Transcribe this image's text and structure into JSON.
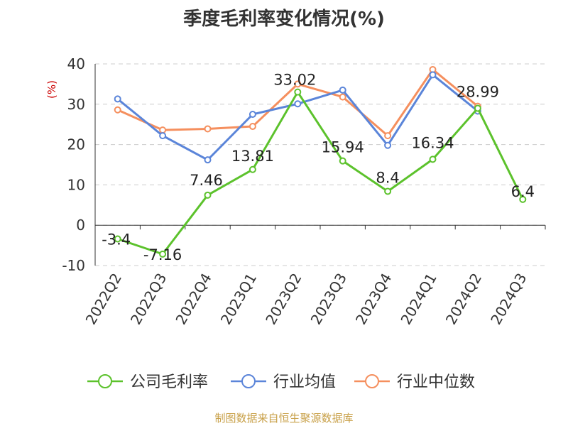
{
  "chart_data": {
    "type": "line",
    "title": "季度毛利率变化情况(%)",
    "ylabel": "(%)",
    "xlabel": "",
    "categories": [
      "2022Q2",
      "2022Q3",
      "2022Q4",
      "2023Q1",
      "2023Q2",
      "2023Q3",
      "2023Q4",
      "2024Q1",
      "2024Q2",
      "2024Q3"
    ],
    "ylim": [
      -10,
      40
    ],
    "yticks": [
      -10,
      0,
      10,
      20,
      30,
      40
    ],
    "grid": true,
    "legend_position": "bottom",
    "series": [
      {
        "name": "公司毛利率",
        "color": "#5cc22c",
        "values": [
          -3.4,
          -7.16,
          7.46,
          13.81,
          33.02,
          15.94,
          8.4,
          16.34,
          28.99,
          6.4
        ],
        "labels": [
          "-3.4",
          "-7.16",
          "7.46",
          "13.81",
          "33.02",
          "15.94",
          "8.4",
          "16.34",
          "28.99",
          "6.4"
        ]
      },
      {
        "name": "行业均值",
        "color": "#5b85d9",
        "values": [
          31.3,
          22.2,
          16.2,
          27.5,
          30.1,
          33.5,
          19.8,
          37.3,
          28.3,
          null
        ]
      },
      {
        "name": "行业中位数",
        "color": "#f58f5e",
        "values": [
          28.6,
          23.6,
          23.9,
          24.5,
          35.0,
          31.8,
          22.2,
          38.6,
          29.5,
          null
        ]
      }
    ]
  },
  "source": "制图数据来自恒生聚源数据库"
}
